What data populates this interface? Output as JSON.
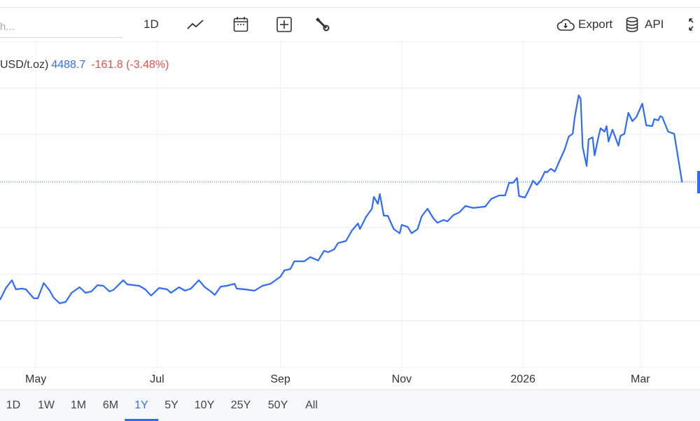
{
  "toolbar": {
    "search_placeholder": "h...",
    "interval_label": "1D",
    "icons": [
      "line-chart-icon",
      "calendar-icon",
      "add-box-icon",
      "wrench-icon",
      "cloud-download-icon",
      "database-icon",
      "fullscreen-icon"
    ],
    "export_label": "Export",
    "api_label": "API"
  },
  "legend": {
    "unit": "USD/t.oz)",
    "price": "4488.7",
    "change": "-161.8 (-3.48%)"
  },
  "ranges": {
    "items": [
      "1D",
      "1W",
      "1M",
      "6M",
      "1Y",
      "5Y",
      "10Y",
      "25Y",
      "50Y",
      "All"
    ],
    "active": "1Y"
  },
  "colors": {
    "line": "#2f6bff",
    "negative": "#ef4b4b",
    "grid": "#eef0f2"
  },
  "chart_data": {
    "type": "line",
    "title": "",
    "xlabel": "",
    "ylabel": "",
    "xlim": [
      "2025-04-13",
      "2026-03-31"
    ],
    "ylim": [
      2500,
      6000
    ],
    "grid": true,
    "y_gridlines": [
      3000,
      3500,
      4000,
      4500,
      5000,
      5500
    ],
    "x_ticks": [
      {
        "date": "2025-05-01",
        "label": "May"
      },
      {
        "date": "2025-07-01",
        "label": "Jul"
      },
      {
        "date": "2025-09-01",
        "label": "Sep"
      },
      {
        "date": "2025-11-01",
        "label": "Nov"
      },
      {
        "date": "2026-01-01",
        "label": "2026"
      },
      {
        "date": "2026-03-01",
        "label": "Mar"
      }
    ],
    "last_price_line": 4488.7,
    "series": [
      {
        "x": [
          "2025-04-13",
          "2025-04-16",
          "2025-04-19",
          "2025-04-21",
          "2025-04-24",
          "2025-04-26",
          "2025-04-30",
          "2025-05-02",
          "2025-05-05",
          "2025-05-08",
          "2025-05-10",
          "2025-05-13",
          "2025-05-16",
          "2025-05-19",
          "2025-05-23",
          "2025-05-26",
          "2025-05-29",
          "2025-06-01",
          "2025-06-04",
          "2025-06-07",
          "2025-06-09",
          "2025-06-14",
          "2025-06-16",
          "2025-06-22",
          "2025-06-25",
          "2025-06-28",
          "2025-07-02",
          "2025-07-06",
          "2025-07-08",
          "2025-07-12",
          "2025-07-15",
          "2025-07-18",
          "2025-07-22",
          "2025-07-25",
          "2025-07-28",
          "2025-07-30",
          "2025-08-02",
          "2025-08-05",
          "2025-08-09",
          "2025-08-10",
          "2025-08-14",
          "2025-08-19",
          "2025-08-23",
          "2025-08-27",
          "2025-09-01",
          "2025-09-03",
          "2025-09-06",
          "2025-09-08",
          "2025-09-13",
          "2025-09-16",
          "2025-09-20",
          "2025-09-23",
          "2025-09-25",
          "2025-09-28",
          "2025-09-30",
          "2025-10-04",
          "2025-10-07",
          "2025-10-10",
          "2025-10-11",
          "2025-10-14",
          "2025-10-17",
          "2025-10-18",
          "2025-10-20",
          "2025-10-21",
          "2025-10-23",
          "2025-10-25",
          "2025-10-28",
          "2025-10-31",
          "2025-11-01",
          "2025-11-04",
          "2025-11-06",
          "2025-11-09",
          "2025-11-11",
          "2025-11-14",
          "2025-11-17",
          "2025-11-19",
          "2025-11-22",
          "2025-11-24",
          "2025-11-27",
          "2025-11-30",
          "2025-12-03",
          "2025-12-07",
          "2025-12-13",
          "2025-12-16",
          "2025-12-20",
          "2025-12-23",
          "2025-12-25",
          "2025-12-27",
          "2025-12-29",
          "2025-12-30",
          "2026-01-02",
          "2026-01-05",
          "2026-01-06",
          "2026-01-08",
          "2026-01-10",
          "2026-01-12",
          "2026-01-13",
          "2026-01-15",
          "2026-01-17",
          "2026-01-19",
          "2026-01-22",
          "2026-01-24",
          "2026-01-26",
          "2026-01-27",
          "2026-01-29",
          "2026-01-30",
          "2026-01-31",
          "2026-02-02",
          "2026-02-03",
          "2026-02-05",
          "2026-02-06",
          "2026-02-08",
          "2026-02-09",
          "2026-02-11",
          "2026-02-12",
          "2026-02-13",
          "2026-02-15",
          "2026-02-18",
          "2026-02-19",
          "2026-02-21",
          "2026-02-23",
          "2026-02-25",
          "2026-02-27",
          "2026-03-02",
          "2026-03-04",
          "2026-03-07",
          "2026-03-08",
          "2026-03-10",
          "2026-03-11",
          "2026-03-12",
          "2026-03-15",
          "2026-03-18",
          "2026-03-22"
        ],
        "y": [
          3225,
          3353,
          3436,
          3338,
          3346,
          3338,
          3241,
          3241,
          3406,
          3323,
          3248,
          3188,
          3203,
          3301,
          3361,
          3301,
          3316,
          3383,
          3376,
          3316,
          3331,
          3436,
          3391,
          3376,
          3338,
          3271,
          3353,
          3338,
          3301,
          3361,
          3323,
          3346,
          3436,
          3361,
          3316,
          3278,
          3368,
          3376,
          3398,
          3346,
          3338,
          3323,
          3376,
          3398,
          3474,
          3541,
          3556,
          3639,
          3639,
          3684,
          3647,
          3752,
          3737,
          3767,
          3835,
          3857,
          3970,
          4045,
          3985,
          4113,
          4203,
          4331,
          4256,
          4361,
          4128,
          4128,
          3985,
          3940,
          4030,
          4008,
          3940,
          3985,
          4120,
          4203,
          4098,
          4053,
          4083,
          4068,
          4135,
          4165,
          4233,
          4211,
          4226,
          4308,
          4346,
          4346,
          4481,
          4481,
          4534,
          4338,
          4323,
          4451,
          4504,
          4459,
          4511,
          4602,
          4594,
          4632,
          4602,
          4699,
          4842,
          4978,
          5008,
          5181,
          5421,
          5384,
          4865,
          4662,
          4948,
          4970,
          4775,
          4978,
          5068,
          5030,
          5090,
          4925,
          5053,
          4880,
          4985,
          5008,
          5233,
          5143,
          5188,
          5331,
          5098,
          5090,
          5166,
          5151,
          5196,
          5188,
          5030,
          5008,
          4488.7
        ]
      }
    ]
  }
}
